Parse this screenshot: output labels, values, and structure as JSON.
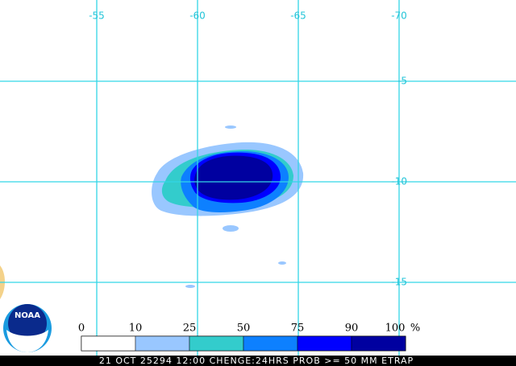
{
  "map": {
    "lon_labels": [
      "-55",
      "-60",
      "-65",
      "-70"
    ],
    "lat_labels": [
      "-5",
      "-10",
      "-15"
    ],
    "legend": {
      "labels": [
        "0",
        "10",
        "25",
        "50",
        "75",
        "90",
        "100"
      ],
      "unit": "%",
      "colors": [
        "#ffffff",
        "#99c7ff",
        "#33cccc",
        "#0d80ff",
        "#0000ff",
        "#0000a0"
      ]
    },
    "logo": "NOAA",
    "caption": "21 OCT 25294 12:00 CHENGE:24HRS PROB >= 50 MM ETRAP"
  }
}
